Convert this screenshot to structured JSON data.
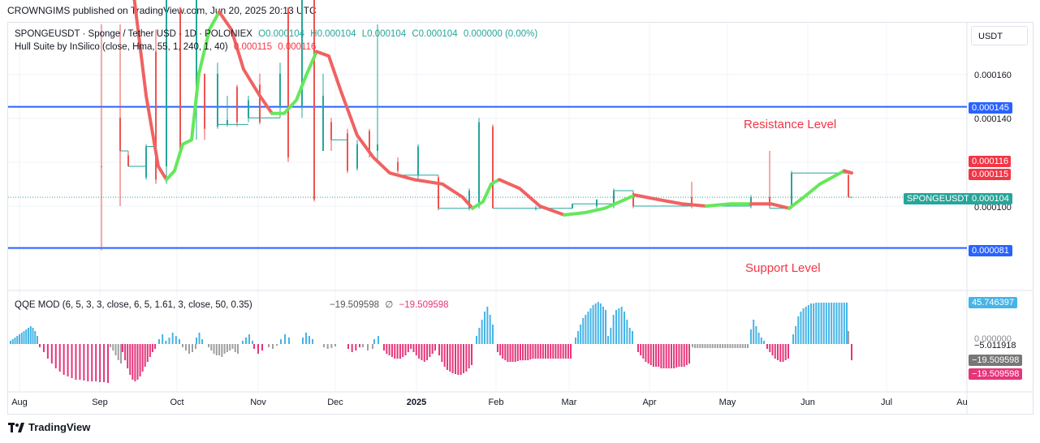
{
  "header": {
    "published": "CROWNGIMS published on TradingView.com, Jun 20, 2025 20:13 UTC"
  },
  "symbol_legend": {
    "name": "SPONGEUSDT · Sponge / Tether USD · 1D · POLONIEX",
    "open": "O0.000104",
    "high": "H0.000104",
    "low": "L0.000104",
    "close": "C0.000104",
    "change": "0.000000 (0.00%)"
  },
  "hull_legend": {
    "name": "Hull Suite by InSilico (close, Hma, 55, 1, 240, 1, 40)",
    "v1": "0.000115",
    "v2": "0.000116"
  },
  "qqe_legend": {
    "name": "QQE MOD (6, 5, 3, 3, close, 6, 5, 1.61, 3, close, 50, 0.35)",
    "v1": "−19.509598",
    "sym": "∅",
    "v2": "−19.509598"
  },
  "currency_button": "USDT",
  "price_axis": {
    "ticks": [
      "0.000160",
      "0.000140",
      "0.000100"
    ]
  },
  "price_tags": {
    "resistance": "0.000145",
    "support": "0.000081",
    "hull_top": "0.000116",
    "hull_bottom": "0.000115",
    "symbol_tag": "SPONGEUSDT",
    "last": "0.000104"
  },
  "qqe_axis": {
    "top": "45.746397",
    "tick1": "0.000000",
    "tick2": "−5.011918",
    "val1": "−19.509598",
    "val2": "−19.509598"
  },
  "annotations": {
    "resistance": "Resistance Level",
    "support": "Support Level"
  },
  "x_axis": {
    "labels": [
      "Aug",
      "Sep",
      "Oct",
      "Nov",
      "Dec",
      "2025",
      "Feb",
      "Mar",
      "Apr",
      "May",
      "Jun",
      "Jul",
      "Au"
    ]
  },
  "footer": {
    "brand": "TradingView"
  },
  "colors": {
    "up": "#26a69a",
    "down": "#ef5350",
    "hull_up": "#64e85a",
    "hull_down": "#f06262",
    "level": "#2962ff",
    "hist_up": "#46b4e6",
    "hist_down": "#e6357a",
    "hist_neutral": "#a0a0a0"
  },
  "chart_data": {
    "type": "candlestick",
    "timeframe": "1D",
    "levels": {
      "resistance": 0.000145,
      "support": 8.1e-05
    },
    "last_price": 0.000104,
    "hull_value": [
      0.000115,
      0.000116
    ],
    "qqe_last": -19.509598,
    "qqe_max": 45.746397
  }
}
